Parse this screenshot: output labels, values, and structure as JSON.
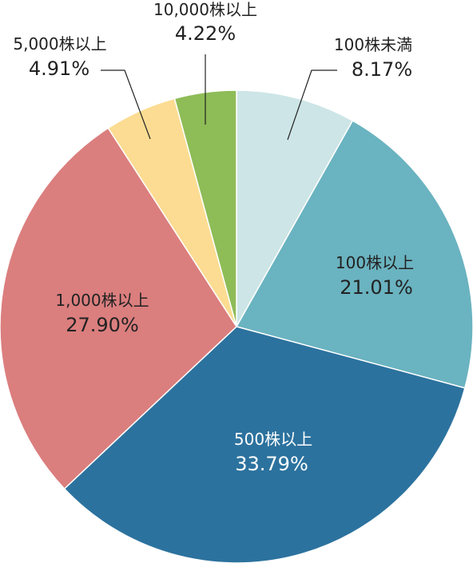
{
  "chart_data": {
    "type": "pie",
    "start_angle_deg": 0,
    "direction": "clockwise",
    "slices": [
      {
        "label": "100株未満",
        "value": 8.17,
        "value_label": "8.17%",
        "color": "#cde5e6"
      },
      {
        "label": "100株以上",
        "value": 21.01,
        "value_label": "21.01%",
        "color": "#6ab3c0"
      },
      {
        "label": "500株以上",
        "value": 33.79,
        "value_label": "33.79%",
        "color": "#2c729e"
      },
      {
        "label": "1,000株以上",
        "value": 27.9,
        "value_label": "27.90%",
        "color": "#db7e7e"
      },
      {
        "label": "5,000株以上",
        "value": 4.91,
        "value_label": "4.91%",
        "color": "#fcdc92"
      },
      {
        "label": "10,000株以上",
        "value": 4.22,
        "value_label": "4.22%",
        "color": "#8ebc57"
      }
    ]
  }
}
